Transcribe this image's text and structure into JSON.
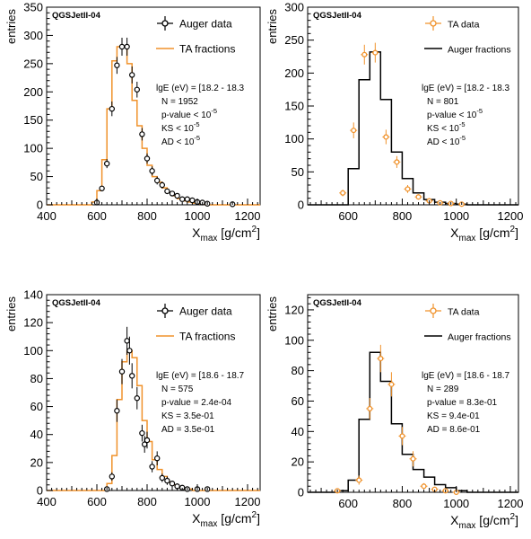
{
  "chart_data": [
    {
      "type": "histogram",
      "model_label": "QGSJetII-04",
      "ylabel": "entries",
      "xlabel_main": "X",
      "xlabel_sub": "max",
      "xlabel_unit": " [g/cm",
      "xlabel_sup": "2",
      "xlabel_end": "]",
      "xlim": [
        400,
        1250
      ],
      "ylim": [
        0,
        350
      ],
      "xticks": [
        400,
        600,
        800,
        1000,
        1200
      ],
      "yticks": [
        0,
        50,
        100,
        150,
        200,
        250,
        300,
        350
      ],
      "legend": [
        {
          "label": "Auger data",
          "style": "points-black"
        },
        {
          "label": "TA fractions",
          "style": "line-orange"
        }
      ],
      "annotations": [
        {
          "text": "lgE (eV) = [18.2 - 18.3"
        },
        {
          "text": "N = 1952"
        },
        {
          "text": "p-value < 10",
          "sup": "-5"
        },
        {
          "text": "KS < 10",
          "sup": "-5"
        },
        {
          "text": "AD < 10",
          "sup": "-5"
        }
      ],
      "hist": {
        "color": "#f0922b",
        "edges": [
          400,
          580,
          600,
          620,
          640,
          660,
          680,
          700,
          720,
          740,
          760,
          780,
          800,
          820,
          840,
          860,
          880,
          900,
          920,
          940,
          960,
          980,
          1000,
          1020,
          1040,
          1250
        ],
        "values": [
          0,
          5,
          25,
          80,
          170,
          255,
          280,
          280,
          250,
          185,
          140,
          100,
          70,
          50,
          40,
          30,
          22,
          16,
          11,
          7,
          5,
          3,
          2,
          1,
          0
        ]
      },
      "points": {
        "color": "#000000",
        "x": [
          600,
          620,
          640,
          660,
          680,
          700,
          720,
          740,
          760,
          780,
          800,
          820,
          840,
          860,
          880,
          900,
          920,
          940,
          960,
          980,
          1000,
          1020,
          1040,
          1140
        ],
        "y": [
          4,
          29,
          73,
          170,
          247,
          280,
          280,
          230,
          204,
          125,
          82,
          60,
          43,
          35,
          24,
          20,
          16,
          10,
          10,
          8,
          5,
          4,
          2,
          1
        ],
        "err": [
          2,
          5,
          8,
          13,
          15,
          16,
          16,
          15,
          14,
          11,
          9,
          8,
          7,
          6,
          5,
          4,
          4,
          3,
          3,
          3,
          2,
          2,
          1,
          1
        ]
      }
    },
    {
      "type": "histogram",
      "model_label": "QGSJetII-04",
      "ylabel": "entries",
      "xlabel_main": "X",
      "xlabel_sub": "max",
      "xlabel_unit": " [g/cm",
      "xlabel_sup": "2",
      "xlabel_end": "]",
      "xlim": [
        450,
        1230
      ],
      "ylim": [
        0,
        300
      ],
      "xticks": [
        600,
        800,
        1000,
        1200
      ],
      "yticks": [
        0,
        50,
        100,
        150,
        200,
        250,
        300
      ],
      "legend": [
        {
          "label": "TA data",
          "style": "points-orange"
        },
        {
          "label": "Auger fractions",
          "style": "line-black"
        }
      ],
      "annotations": [
        {
          "text": "lgE (eV) = [18.2 - 18.3"
        },
        {
          "text": "N = 801"
        },
        {
          "text": "p-value < 10",
          "sup": "-5"
        },
        {
          "text": "KS < 10",
          "sup": "-5"
        },
        {
          "text": "AD < 10",
          "sup": "-5"
        }
      ],
      "hist": {
        "color": "#000000",
        "edges": [
          450,
          600,
          640,
          680,
          720,
          760,
          800,
          840,
          880,
          920,
          960,
          1000,
          1040,
          1230
        ],
        "values": [
          0,
          55,
          190,
          232,
          160,
          80,
          40,
          18,
          8,
          4,
          2,
          1,
          0
        ]
      },
      "points": {
        "color": "#f0922b",
        "x": [
          580,
          620,
          660,
          700,
          740,
          780,
          820,
          860,
          900,
          940,
          980,
          1020
        ],
        "y": [
          18,
          113,
          228,
          231,
          103,
          65,
          24,
          12,
          6,
          3,
          2,
          1
        ],
        "err": [
          5,
          12,
          15,
          15,
          11,
          9,
          6,
          4,
          3,
          2,
          1,
          1
        ]
      }
    },
    {
      "type": "histogram",
      "model_label": "QGSJetII-04",
      "ylabel": "entries",
      "xlabel_main": "X",
      "xlabel_sub": "max",
      "xlabel_unit": " [g/cm",
      "xlabel_sup": "2",
      "xlabel_end": "]",
      "xlim": [
        400,
        1250
      ],
      "ylim": [
        0,
        140
      ],
      "xticks": [
        400,
        600,
        800,
        1000,
        1200
      ],
      "yticks": [
        0,
        20,
        40,
        60,
        80,
        100,
        120,
        140
      ],
      "legend": [
        {
          "label": "Auger data",
          "style": "points-black"
        },
        {
          "label": "TA fractions",
          "style": "line-orange"
        }
      ],
      "annotations": [
        {
          "text": "lgE (eV) = [18.6 - 18.7"
        },
        {
          "text": "N = 575"
        },
        {
          "text": "p-value = 2.4e-04"
        },
        {
          "text": "KS = 3.5e-01"
        },
        {
          "text": "AD = 3.5e-01"
        }
      ],
      "hist": {
        "color": "#f0922b",
        "edges": [
          400,
          640,
          660,
          680,
          700,
          720,
          740,
          760,
          780,
          800,
          820,
          840,
          860,
          880,
          900,
          920,
          940,
          960,
          980,
          1250
        ],
        "values": [
          0,
          5,
          25,
          65,
          92,
          100,
          95,
          75,
          50,
          35,
          22,
          15,
          10,
          6,
          4,
          2,
          1,
          1,
          0
        ]
      },
      "points": {
        "color": "#000000",
        "x": [
          640,
          660,
          680,
          700,
          720,
          730,
          740,
          760,
          780,
          790,
          800,
          820,
          840,
          860,
          880,
          900,
          920,
          940,
          960,
          1000,
          1040
        ],
        "y": [
          1,
          10,
          57,
          85,
          107,
          100,
          82,
          66,
          41,
          33,
          36,
          17,
          23,
          9,
          7,
          5,
          3,
          2,
          1,
          1,
          1
        ],
        "err": [
          1,
          3,
          8,
          9,
          10,
          10,
          9,
          8,
          6,
          6,
          6,
          4,
          5,
          3,
          3,
          2,
          2,
          1,
          1,
          1,
          1
        ]
      }
    },
    {
      "type": "histogram",
      "model_label": "QGSJetII-04",
      "ylabel": "entries",
      "xlabel_main": "X",
      "xlabel_sub": "max",
      "xlabel_unit": " [g/cm",
      "xlabel_sup": "2",
      "xlabel_end": "]",
      "xlim": [
        450,
        1230
      ],
      "ylim": [
        0,
        130
      ],
      "xticks": [
        600,
        800,
        1000,
        1200
      ],
      "yticks": [
        0,
        20,
        40,
        60,
        80,
        100,
        120
      ],
      "legend": [
        {
          "label": "TA data",
          "style": "points-orange"
        },
        {
          "label": "Auger fractions",
          "style": "line-black"
        }
      ],
      "annotations": [
        {
          "text": "lgE (eV) = [18.6 - 18.7"
        },
        {
          "text": "N = 289"
        },
        {
          "text": "p-value = 8.3e-01"
        },
        {
          "text": "KS = 9.4e-01"
        },
        {
          "text": "AD = 8.6e-01"
        }
      ],
      "hist": {
        "color": "#000000",
        "edges": [
          450,
          560,
          600,
          640,
          680,
          720,
          760,
          800,
          840,
          880,
          920,
          960,
          1000,
          1040,
          1230
        ],
        "values": [
          0,
          1,
          8,
          48,
          92,
          73,
          45,
          25,
          15,
          10,
          5,
          3,
          1,
          0
        ]
      },
      "points": {
        "color": "#f0922b",
        "x": [
          560,
          640,
          680,
          720,
          760,
          800,
          840,
          880,
          920,
          960,
          1000
        ],
        "y": [
          1,
          8,
          55,
          88,
          71,
          37,
          22,
          4,
          2,
          1,
          0
        ],
        "err": [
          1,
          3,
          7,
          9,
          8,
          6,
          5,
          2,
          1,
          1,
          1
        ]
      }
    }
  ]
}
